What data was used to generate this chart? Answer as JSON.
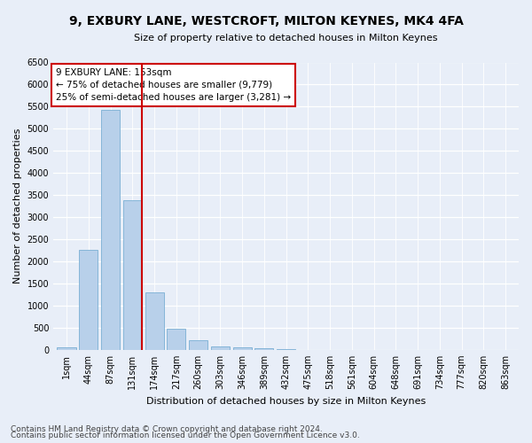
{
  "title": "9, EXBURY LANE, WESTCROFT, MILTON KEYNES, MK4 4FA",
  "subtitle": "Size of property relative to detached houses in Milton Keynes",
  "xlabel": "Distribution of detached houses by size in Milton Keynes",
  "ylabel": "Number of detached properties",
  "footnote1": "Contains HM Land Registry data © Crown copyright and database right 2024.",
  "footnote2": "Contains public sector information licensed under the Open Government Licence v3.0.",
  "annotation_title": "9 EXBURY LANE: 153sqm",
  "annotation_line1": "← 75% of detached houses are smaller (9,779)",
  "annotation_line2": "25% of semi-detached houses are larger (3,281) →",
  "bar_labels": [
    "1sqm",
    "44sqm",
    "87sqm",
    "131sqm",
    "174sqm",
    "217sqm",
    "260sqm",
    "303sqm",
    "346sqm",
    "389sqm",
    "432sqm",
    "475sqm",
    "518sqm",
    "561sqm",
    "604sqm",
    "648sqm",
    "691sqm",
    "734sqm",
    "777sqm",
    "820sqm",
    "863sqm"
  ],
  "bar_values": [
    60,
    2270,
    5430,
    3380,
    1290,
    470,
    210,
    80,
    55,
    35,
    10,
    5,
    0,
    0,
    0,
    0,
    0,
    0,
    0,
    0,
    0
  ],
  "bar_color": "#b8d0ea",
  "bar_edge_color": "#7aafd4",
  "vline_color": "#cc0000",
  "ylim": [
    0,
    6500
  ],
  "yticks": [
    0,
    500,
    1000,
    1500,
    2000,
    2500,
    3000,
    3500,
    4000,
    4500,
    5000,
    5500,
    6000,
    6500
  ],
  "bg_color": "#e8eef8",
  "annotation_box_color": "#ffffff",
  "annotation_box_edge": "#cc0000",
  "title_fontsize": 10,
  "subtitle_fontsize": 8,
  "ylabel_fontsize": 8,
  "xlabel_fontsize": 8,
  "tick_fontsize": 7,
  "footnote_fontsize": 6.5
}
